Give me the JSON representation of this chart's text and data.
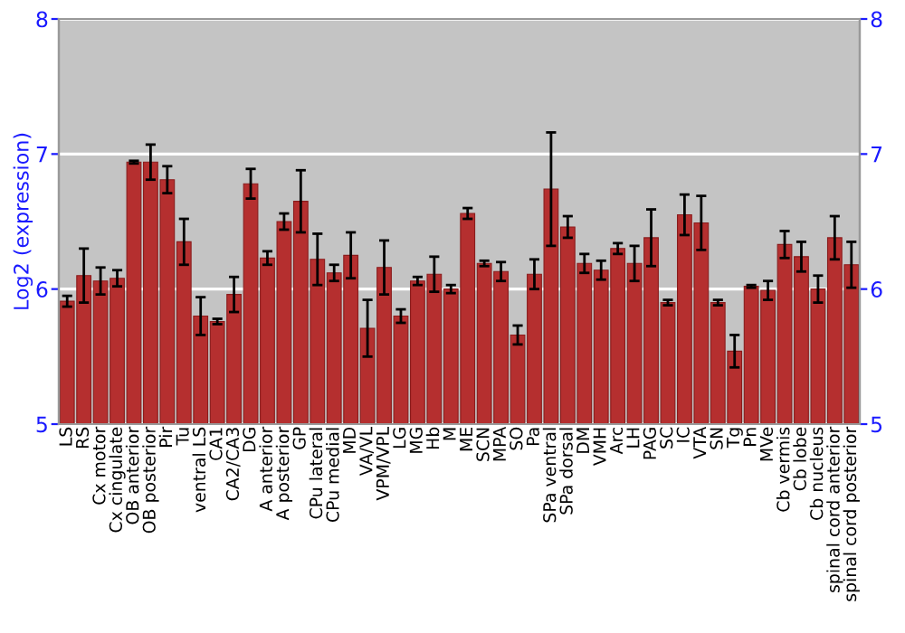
{
  "chart_data": {
    "type": "bar",
    "ylabel": "Log2 (expression)",
    "categories": [
      "LS",
      "RS",
      "Cx motor",
      "Cx cingulate",
      "OB anterior",
      "OB posterior",
      "Pir",
      "Tu",
      "ventral LS",
      "CA1",
      "CA2/CA3",
      "DG",
      "A anterior",
      "A posterior",
      "GP",
      "CPu lateral",
      "CPu medial",
      "MD",
      "VA/VL",
      "VPM/VPL",
      "LG",
      "MG",
      "Hb",
      "M",
      "ME",
      "SCN",
      "MPA",
      "SO",
      "Pa",
      "SPa ventral",
      "SPa dorsal",
      "DM",
      "VMH",
      "Arc",
      "LH",
      "PAG",
      "SC",
      "IC",
      "VTA",
      "SN",
      "Tg",
      "Pn",
      "MVe",
      "Cb vermis",
      "Cb lobe",
      "Cb nucleus",
      "spinal cord anterior",
      "spinal cord posterior"
    ],
    "values": [
      5.91,
      6.1,
      6.06,
      6.08,
      6.94,
      6.94,
      6.81,
      6.35,
      5.8,
      5.76,
      5.96,
      6.78,
      6.23,
      6.5,
      6.65,
      6.22,
      6.12,
      6.25,
      5.71,
      6.16,
      5.8,
      6.06,
      6.11,
      6.0,
      6.56,
      6.19,
      6.13,
      5.66,
      6.11,
      6.74,
      6.46,
      6.19,
      6.14,
      6.3,
      6.19,
      6.38,
      5.9,
      6.55,
      6.49,
      5.9,
      5.54,
      6.02,
      5.99,
      6.33,
      6.24,
      6.0,
      6.38,
      6.18
    ],
    "errors": [
      0.04,
      0.2,
      0.1,
      0.06,
      0.01,
      0.13,
      0.1,
      0.17,
      0.14,
      0.02,
      0.13,
      0.11,
      0.05,
      0.06,
      0.23,
      0.19,
      0.06,
      0.17,
      0.21,
      0.2,
      0.05,
      0.03,
      0.13,
      0.03,
      0.04,
      0.02,
      0.07,
      0.07,
      0.11,
      0.42,
      0.08,
      0.07,
      0.07,
      0.04,
      0.13,
      0.21,
      0.02,
      0.15,
      0.2,
      0.02,
      0.12,
      0.01,
      0.07,
      0.1,
      0.11,
      0.1,
      0.16,
      0.17
    ],
    "color": "#b52f2f",
    "ylim": [
      5,
      8
    ],
    "yticks": [
      5,
      6,
      7,
      8
    ],
    "y2lim": [
      5,
      8
    ],
    "y2ticks": [
      5,
      6,
      7,
      8
    ],
    "grid": "y"
  }
}
